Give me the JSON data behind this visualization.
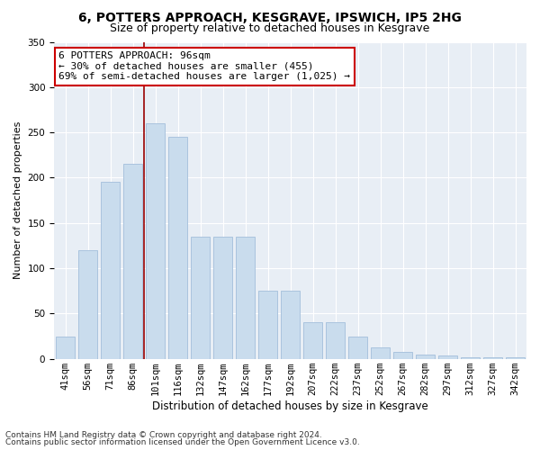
{
  "title1": "6, POTTERS APPROACH, KESGRAVE, IPSWICH, IP5 2HG",
  "title2": "Size of property relative to detached houses in Kesgrave",
  "xlabel": "Distribution of detached houses by size in Kesgrave",
  "ylabel": "Number of detached properties",
  "categories": [
    "41sqm",
    "56sqm",
    "71sqm",
    "86sqm",
    "101sqm",
    "116sqm",
    "132sqm",
    "147sqm",
    "162sqm",
    "177sqm",
    "192sqm",
    "207sqm",
    "222sqm",
    "237sqm",
    "252sqm",
    "267sqm",
    "282sqm",
    "297sqm",
    "312sqm",
    "327sqm",
    "342sqm"
  ],
  "values": [
    25,
    120,
    195,
    215,
    260,
    245,
    135,
    135,
    135,
    75,
    75,
    40,
    40,
    25,
    13,
    8,
    5,
    4,
    2,
    2,
    2
  ],
  "bar_color": "#c9dced",
  "bar_edge_color": "#aac4de",
  "vline_x_index": 3.5,
  "vline_color": "#990000",
  "annotation_title": "6 POTTERS APPROACH: 96sqm",
  "annotation_line2": "← 30% of detached houses are smaller (455)",
  "annotation_line3": "69% of semi-detached houses are larger (1,025) →",
  "annotation_box_facecolor": "#ffffff",
  "annotation_box_edgecolor": "#cc0000",
  "ylim": [
    0,
    350
  ],
  "yticks": [
    0,
    50,
    100,
    150,
    200,
    250,
    300,
    350
  ],
  "plot_bg_color": "#e8eef5",
  "grid_color": "#ffffff",
  "footnote1": "Contains HM Land Registry data © Crown copyright and database right 2024.",
  "footnote2": "Contains public sector information licensed under the Open Government Licence v3.0.",
  "title1_fontsize": 10,
  "title2_fontsize": 9,
  "xlabel_fontsize": 8.5,
  "ylabel_fontsize": 8,
  "tick_fontsize": 7.5,
  "annotation_fontsize": 8,
  "footnote_fontsize": 6.5
}
